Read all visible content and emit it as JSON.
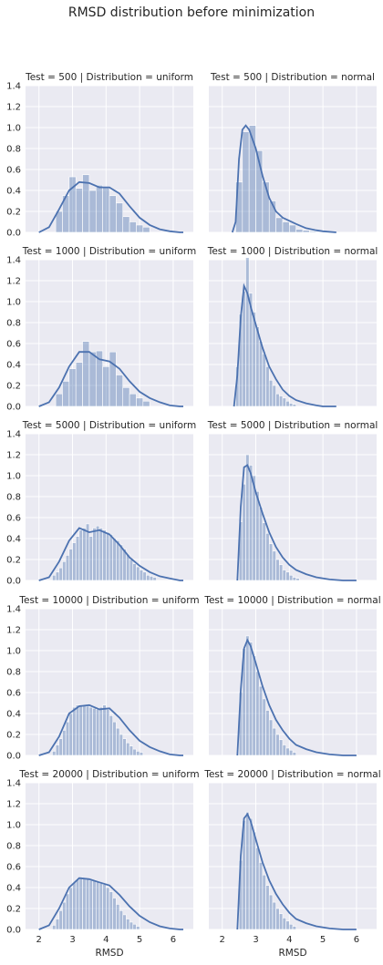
{
  "title": "RMSD distribution before minimization",
  "chart_data": {
    "type": "histogram-grid",
    "title": "RMSD distribution before minimization",
    "xlabel": "RMSD",
    "ylabel": "",
    "xlim": [
      1.6,
      6.6
    ],
    "ylim": [
      0,
      1.4
    ],
    "xticks": [
      2,
      3,
      4,
      5,
      6
    ],
    "yticks": [
      0.0,
      0.2,
      0.4,
      0.6,
      0.8,
      1.0,
      1.2,
      1.4
    ],
    "rows": 5,
    "cols": 2,
    "color": "#4c72b0",
    "panels": [
      {
        "title": "Test = 500 | Distribution = uniform",
        "hist": {
          "start": 2.5,
          "width": 0.2,
          "values": [
            0.2,
            0.35,
            0.53,
            0.42,
            0.55,
            0.4,
            0.45,
            0.43,
            0.35,
            0.28,
            0.15,
            0.1,
            0.07,
            0.05
          ]
        },
        "kde": {
          "x": [
            2.0,
            2.3,
            2.6,
            2.9,
            3.2,
            3.5,
            3.8,
            4.1,
            4.4,
            4.7,
            5.0,
            5.3,
            5.6,
            5.9,
            6.2,
            6.3
          ],
          "y": [
            0.0,
            0.05,
            0.22,
            0.4,
            0.48,
            0.47,
            0.43,
            0.43,
            0.37,
            0.25,
            0.14,
            0.07,
            0.03,
            0.01,
            0.0,
            0.0
          ]
        }
      },
      {
        "title": "Test = 500 | Distribution = normal",
        "hist": {
          "start": 2.4,
          "width": 0.2,
          "values": [
            0.48,
            0.96,
            1.02,
            0.78,
            0.48,
            0.3,
            0.14,
            0.1,
            0.07,
            0.03,
            0.02,
            0.01
          ]
        },
        "kde": {
          "x": [
            2.3,
            2.4,
            2.5,
            2.6,
            2.7,
            2.8,
            3.0,
            3.2,
            3.4,
            3.6,
            3.8,
            4.0,
            4.2,
            4.5,
            4.8,
            5.0,
            5.4
          ],
          "y": [
            0.0,
            0.1,
            0.7,
            0.98,
            1.02,
            0.98,
            0.8,
            0.54,
            0.33,
            0.2,
            0.14,
            0.11,
            0.08,
            0.04,
            0.02,
            0.01,
            0.0
          ]
        }
      },
      {
        "title": "Test = 1000 | Distribution = uniform",
        "hist": {
          "start": 2.5,
          "width": 0.2,
          "values": [
            0.12,
            0.24,
            0.36,
            0.42,
            0.62,
            0.52,
            0.53,
            0.38,
            0.52,
            0.3,
            0.18,
            0.12,
            0.08,
            0.05
          ]
        },
        "kde": {
          "x": [
            2.0,
            2.3,
            2.6,
            2.9,
            3.2,
            3.5,
            3.8,
            4.1,
            4.4,
            4.7,
            5.0,
            5.3,
            5.6,
            5.9,
            6.2,
            6.3
          ],
          "y": [
            0.0,
            0.04,
            0.18,
            0.38,
            0.52,
            0.52,
            0.45,
            0.43,
            0.36,
            0.24,
            0.14,
            0.08,
            0.04,
            0.01,
            0.0,
            0.0
          ]
        }
      },
      {
        "title": "Test = 1000 | Distribution = normal",
        "hist": {
          "start": 2.4,
          "width": 0.1,
          "values": [
            0.38,
            0.88,
            1.1,
            1.42,
            1.08,
            0.9,
            0.76,
            0.62,
            0.5,
            0.38,
            0.25,
            0.2,
            0.12,
            0.1,
            0.08,
            0.05,
            0.03,
            0.02
          ]
        },
        "kde": {
          "x": [
            2.35,
            2.45,
            2.55,
            2.65,
            2.75,
            2.85,
            3.0,
            3.2,
            3.4,
            3.6,
            3.8,
            4.0,
            4.2,
            4.5,
            4.8,
            5.0,
            5.4
          ],
          "y": [
            0.0,
            0.3,
            0.85,
            1.15,
            1.08,
            0.95,
            0.78,
            0.56,
            0.38,
            0.26,
            0.16,
            0.1,
            0.06,
            0.03,
            0.01,
            0.0,
            0.0
          ]
        }
      },
      {
        "title": "Test = 5000 | Distribution = uniform",
        "hist": {
          "start": 2.4,
          "width": 0.1,
          "values": [
            0.05,
            0.08,
            0.12,
            0.18,
            0.24,
            0.3,
            0.36,
            0.42,
            0.48,
            0.5,
            0.54,
            0.42,
            0.5,
            0.52,
            0.5,
            0.48,
            0.46,
            0.44,
            0.4,
            0.38,
            0.34,
            0.3,
            0.25,
            0.2,
            0.16,
            0.13,
            0.1,
            0.08,
            0.05,
            0.04,
            0.03
          ]
        },
        "kde": {
          "x": [
            2.0,
            2.3,
            2.6,
            2.9,
            3.2,
            3.5,
            3.8,
            4.1,
            4.4,
            4.7,
            5.0,
            5.3,
            5.6,
            5.9,
            6.2,
            6.3
          ],
          "y": [
            0.0,
            0.03,
            0.18,
            0.38,
            0.5,
            0.46,
            0.48,
            0.44,
            0.34,
            0.22,
            0.14,
            0.08,
            0.04,
            0.02,
            0.0,
            0.0
          ]
        }
      },
      {
        "title": "Test = 5000 | Distribution = normal",
        "hist": {
          "start": 2.5,
          "width": 0.1,
          "values": [
            0.56,
            0.92,
            1.2,
            1.1,
            1.0,
            0.85,
            0.7,
            0.55,
            0.45,
            0.35,
            0.28,
            0.2,
            0.15,
            0.1,
            0.08,
            0.05,
            0.03,
            0.02
          ]
        },
        "kde": {
          "x": [
            2.45,
            2.55,
            2.65,
            2.75,
            2.85,
            3.0,
            3.2,
            3.4,
            3.6,
            3.8,
            4.0,
            4.2,
            4.5,
            4.8,
            5.2,
            5.6,
            6.0
          ],
          "y": [
            0.0,
            0.7,
            1.08,
            1.1,
            1.02,
            0.84,
            0.64,
            0.46,
            0.32,
            0.22,
            0.15,
            0.1,
            0.06,
            0.03,
            0.01,
            0.0,
            0.0
          ]
        }
      },
      {
        "title": "Test = 10000 | Distribution = uniform",
        "hist": {
          "start": 2.4,
          "width": 0.1,
          "values": [
            0.04,
            0.1,
            0.16,
            0.24,
            0.32,
            0.4,
            0.46,
            0.48,
            0.47,
            0.48,
            0.47,
            0.46,
            0.45,
            0.44,
            0.46,
            0.48,
            0.44,
            0.38,
            0.32,
            0.26,
            0.2,
            0.16,
            0.12,
            0.09,
            0.06,
            0.04,
            0.03
          ]
        },
        "kde": {
          "x": [
            2.0,
            2.3,
            2.6,
            2.9,
            3.2,
            3.5,
            3.8,
            4.1,
            4.4,
            4.7,
            5.0,
            5.3,
            5.6,
            5.9,
            6.2,
            6.3
          ],
          "y": [
            0.0,
            0.03,
            0.18,
            0.4,
            0.47,
            0.48,
            0.44,
            0.45,
            0.36,
            0.24,
            0.14,
            0.08,
            0.04,
            0.01,
            0.0,
            0.0
          ]
        }
      },
      {
        "title": "Test = 10000 | Distribution = normal",
        "hist": {
          "start": 2.5,
          "width": 0.1,
          "values": [
            0.6,
            1.02,
            1.14,
            1.08,
            0.95,
            0.8,
            0.66,
            0.54,
            0.43,
            0.34,
            0.26,
            0.2,
            0.15,
            0.1,
            0.07,
            0.05,
            0.03
          ]
        },
        "kde": {
          "x": [
            2.45,
            2.55,
            2.65,
            2.75,
            2.85,
            3.0,
            3.2,
            3.4,
            3.6,
            3.8,
            4.0,
            4.2,
            4.5,
            4.8,
            5.2,
            5.6,
            6.0
          ],
          "y": [
            0.0,
            0.62,
            1.02,
            1.1,
            1.04,
            0.88,
            0.66,
            0.48,
            0.34,
            0.24,
            0.16,
            0.1,
            0.06,
            0.03,
            0.01,
            0.0,
            0.0
          ]
        }
      },
      {
        "title": "Test = 20000 | Distribution = uniform",
        "hist": {
          "start": 2.4,
          "width": 0.1,
          "values": [
            0.04,
            0.1,
            0.18,
            0.26,
            0.34,
            0.4,
            0.45,
            0.48,
            0.5,
            0.49,
            0.48,
            0.47,
            0.47,
            0.46,
            0.44,
            0.43,
            0.4,
            0.36,
            0.3,
            0.24,
            0.18,
            0.14,
            0.1,
            0.07,
            0.05,
            0.03
          ]
        },
        "kde": {
          "x": [
            2.0,
            2.3,
            2.6,
            2.9,
            3.2,
            3.5,
            3.8,
            4.1,
            4.4,
            4.7,
            5.0,
            5.3,
            5.6,
            5.9,
            6.2,
            6.3
          ],
          "y": [
            0.0,
            0.04,
            0.2,
            0.4,
            0.49,
            0.48,
            0.45,
            0.42,
            0.33,
            0.22,
            0.13,
            0.07,
            0.03,
            0.01,
            0.0,
            0.0
          ]
        }
      },
      {
        "title": "Test = 20000 | Distribution = normal",
        "hist": {
          "start": 2.5,
          "width": 0.1,
          "values": [
            0.66,
            1.04,
            1.12,
            1.06,
            0.93,
            0.78,
            0.64,
            0.52,
            0.42,
            0.33,
            0.26,
            0.2,
            0.15,
            0.11,
            0.08,
            0.05,
            0.03
          ]
        },
        "kde": {
          "x": [
            2.45,
            2.55,
            2.65,
            2.75,
            2.85,
            3.0,
            3.2,
            3.4,
            3.6,
            3.8,
            4.0,
            4.2,
            4.5,
            4.8,
            5.2,
            5.6,
            6.0
          ],
          "y": [
            0.0,
            0.7,
            1.06,
            1.1,
            1.03,
            0.86,
            0.64,
            0.47,
            0.34,
            0.24,
            0.16,
            0.1,
            0.06,
            0.03,
            0.01,
            0.0,
            0.0
          ]
        }
      }
    ]
  }
}
